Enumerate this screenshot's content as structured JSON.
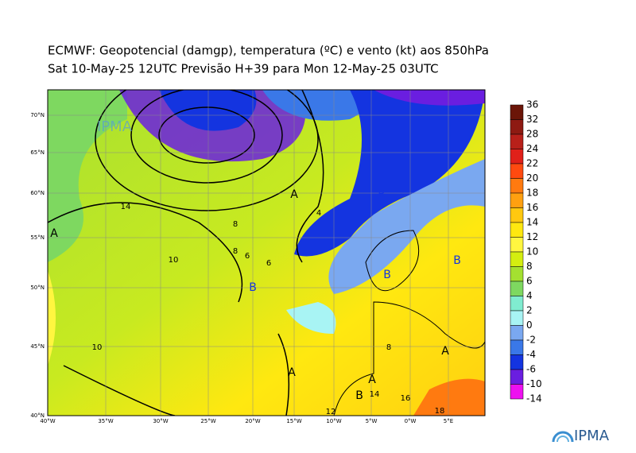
{
  "header": {
    "title": "ECMWF:  Geopotencial (damgp), temperatura (ºC) e vento (kt) aos 850hPa",
    "subtitle": "Sat 10-May-25 12UTC Previsão H+39 para Mon 12-May-25 03UTC"
  },
  "map": {
    "lat_labels": [
      "70°N",
      "65°N",
      "60°N",
      "55°N",
      "50°N",
      "45°N",
      "40°N"
    ],
    "lon_labels": [
      "40°W",
      "35°W",
      "30°W",
      "25°W",
      "20°W",
      "15°W",
      "10°W",
      "5°W",
      "0°W",
      "5°E"
    ],
    "pressure_labels": [
      "A",
      "B",
      "A",
      "B",
      "B",
      "B",
      "B",
      "A",
      "A",
      "B",
      "A"
    ],
    "contour_labels": [
      "8",
      "14",
      "10",
      "8",
      "6",
      "6",
      "14",
      "12",
      "16",
      "18",
      "4",
      "10",
      "8"
    ],
    "watermark": "IPMA"
  },
  "colorbar": {
    "labels": [
      "36",
      "32",
      "28",
      "24",
      "22",
      "20",
      "18",
      "16",
      "14",
      "12",
      "10",
      "8",
      "6",
      "4",
      "2",
      "0",
      "-2",
      "-4",
      "-6",
      "-10",
      "-14"
    ],
    "colors": [
      "#6b1508",
      "#8e1a12",
      "#b8201a",
      "#e0201a",
      "#ff4a10",
      "#ff7a10",
      "#ffa010",
      "#ffc810",
      "#ffe810",
      "#fff640",
      "#d4ee10",
      "#a4e030",
      "#7ed860",
      "#80ecd0",
      "#a8f4f4",
      "#7aa8f0",
      "#3a78e8",
      "#1434e0",
      "#6a1ee0",
      "#ee10f0"
    ]
  },
  "logo": {
    "text": "IPMA"
  }
}
